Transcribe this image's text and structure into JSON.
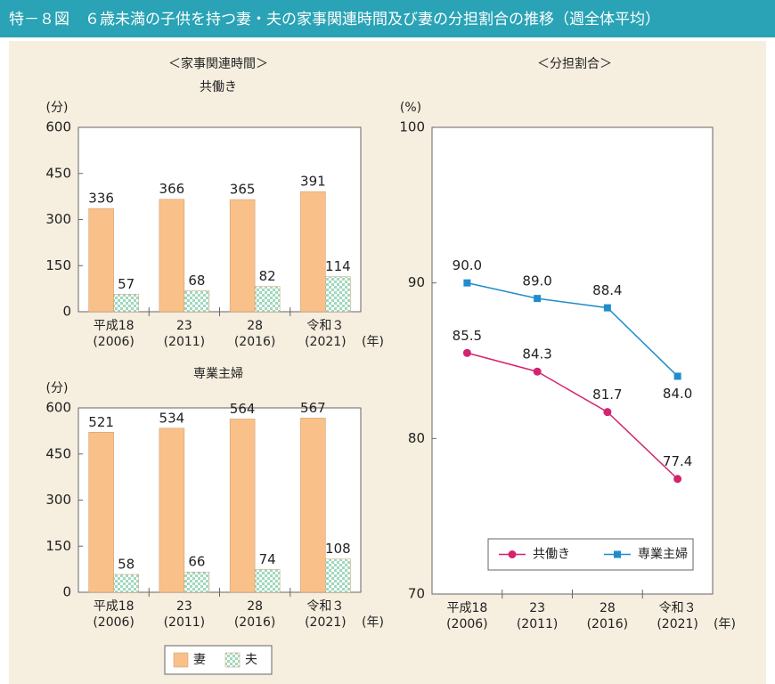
{
  "title": "特－８図　６歳未満の子供を持つ妻・夫の家事関連時間及び妻の分担割合の推移（週全体平均）",
  "chart_data": [
    {
      "type": "bar",
      "section": "＜家事関連時間＞",
      "title": "共働き",
      "y_unit": "(分)",
      "x_unit": "(年)",
      "categories": [
        [
          "平成18",
          "(2006)"
        ],
        [
          "23",
          "(2011)"
        ],
        [
          "28",
          "(2016)"
        ],
        [
          "令和３",
          "(2021)"
        ]
      ],
      "series": [
        {
          "name": "妻",
          "color": "#f9c089",
          "values": [
            336,
            366,
            365,
            391
          ]
        },
        {
          "name": "夫",
          "color": "#9fd8bd",
          "pattern": "checker",
          "values": [
            57,
            68,
            82,
            114
          ]
        }
      ],
      "ylim": [
        0,
        600
      ],
      "yticks": [
        0,
        150,
        300,
        450,
        600
      ]
    },
    {
      "type": "bar",
      "title": "専業主婦",
      "y_unit": "(分)",
      "x_unit": "(年)",
      "categories": [
        [
          "平成18",
          "(2006)"
        ],
        [
          "23",
          "(2011)"
        ],
        [
          "28",
          "(2016)"
        ],
        [
          "令和３",
          "(2021)"
        ]
      ],
      "series": [
        {
          "color": "#f9c089",
          "values": [
            521,
            534,
            564,
            567
          ]
        },
        {
          "color": "#9fd8bd",
          "pattern": "checker",
          "values": [
            58,
            66,
            74,
            108
          ]
        }
      ],
      "ylim": [
        0,
        600
      ],
      "yticks": [
        0,
        150,
        300,
        450,
        600
      ]
    },
    {
      "type": "line",
      "section": "＜分担割合＞",
      "y_unit": "(%)",
      "x_unit": "(年)",
      "categories": [
        [
          "平成18",
          "(2006)"
        ],
        [
          "23",
          "(2011)"
        ],
        [
          "28",
          "(2016)"
        ],
        [
          "令和３",
          "(2021)"
        ]
      ],
      "series": [
        {
          "name": "共働き",
          "color": "#d4236f",
          "marker": "circle",
          "values": [
            85.5,
            84.3,
            81.7,
            77.4
          ],
          "value_labels": [
            "85.5",
            "84.3",
            "81.7",
            "77.4"
          ]
        },
        {
          "name": "専業主婦",
          "color": "#1f8ccc",
          "marker": "square",
          "values": [
            90,
            89,
            88.4,
            84
          ],
          "value_labels": [
            "90.0",
            "89.0",
            "88.4",
            "84.0"
          ]
        }
      ],
      "ylim": [
        70,
        100
      ],
      "yticks": [
        70,
        80,
        90,
        100
      ],
      "legend": "lower right"
    }
  ]
}
